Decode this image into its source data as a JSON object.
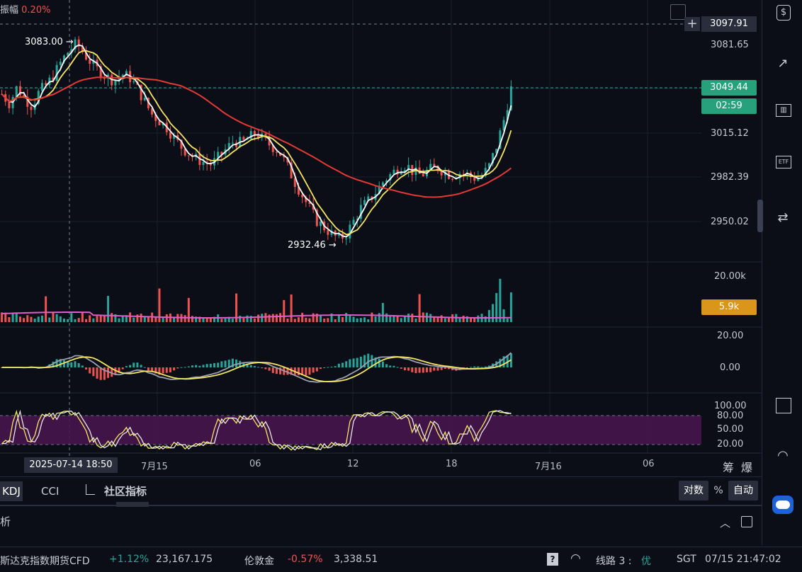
{
  "header": {
    "amplitude_label": "振幅",
    "amplitude_value": "0.20%"
  },
  "price_axis": {
    "ticks": [
      "3081.65",
      "3015.12",
      "2982.39",
      "2950.02"
    ],
    "crosshair_price": "3097.91",
    "last_price": "3049.44",
    "countdown": "02:59"
  },
  "annotations": {
    "high": "3083.00 →",
    "low": "2932.46 →"
  },
  "volume_axis": {
    "tick": "20.00k",
    "current": "5.9k"
  },
  "macd_axis": {
    "ticks": [
      "20.00",
      "0.00"
    ]
  },
  "kdj_axis": {
    "ticks": [
      "100.00",
      "80.00",
      "50.00",
      "20.00"
    ]
  },
  "time_axis": {
    "crosshair_time": "2025-07-14 18:50",
    "labels": [
      "7月15",
      "06",
      "12",
      "18",
      "7月16",
      "06"
    ],
    "right_icons": [
      "筹",
      "爆"
    ]
  },
  "indicator_tabs": {
    "kdj": "KDJ",
    "cci": "CCI",
    "community": "社区指标"
  },
  "scale_buttons": {
    "log": "对数",
    "percent": "%",
    "auto": "自动"
  },
  "panel": {
    "title": "析"
  },
  "ticker": {
    "item1_name": "斯达克指数期货CFD",
    "item1_change": "+1.12%",
    "item1_price": "23,167.175",
    "item2_name": "伦敦金",
    "item2_change": "-0.57%",
    "item2_price": "3,338.51",
    "line_label": "线路 3 :",
    "line_quality": "优",
    "timezone": "SGT",
    "datetime": "07/15 21:47:02"
  },
  "colors": {
    "up": "#26a69a",
    "down": "#ef5350",
    "ma_white": "#ffffff",
    "ma_yellow": "#f5e663",
    "ma_red": "#e53935",
    "vol_ma": "#e05cc8",
    "last_price_tag": "#26a17b",
    "volume_tag": "#d9961a",
    "kdj_band": "#4a1550"
  },
  "chart_data": {
    "type": "candlestick",
    "price_range": [
      2920,
      3105
    ],
    "close_series_approx": [
      3045,
      3038,
      3050,
      3042,
      3036,
      3047,
      3052,
      3060,
      3070,
      3078,
      3083,
      3075,
      3068,
      3062,
      3058,
      3055,
      3060,
      3058,
      3050,
      3040,
      3030,
      3025,
      3020,
      3012,
      3005,
      3000,
      2996,
      2994,
      2992,
      2998,
      3004,
      3010,
      3008,
      3012,
      3016,
      3010,
      3006,
      3002,
      2992,
      2980,
      2970,
      2960,
      2950,
      2945,
      2940,
      2936,
      2940,
      2950,
      2960,
      2965,
      2972,
      2980,
      2985,
      2990,
      2992,
      2986,
      2984,
      2988,
      2990,
      2987,
      2984,
      2986,
      2985,
      2982,
      2983,
      2990,
      3005,
      3025,
      3049
    ]
  }
}
